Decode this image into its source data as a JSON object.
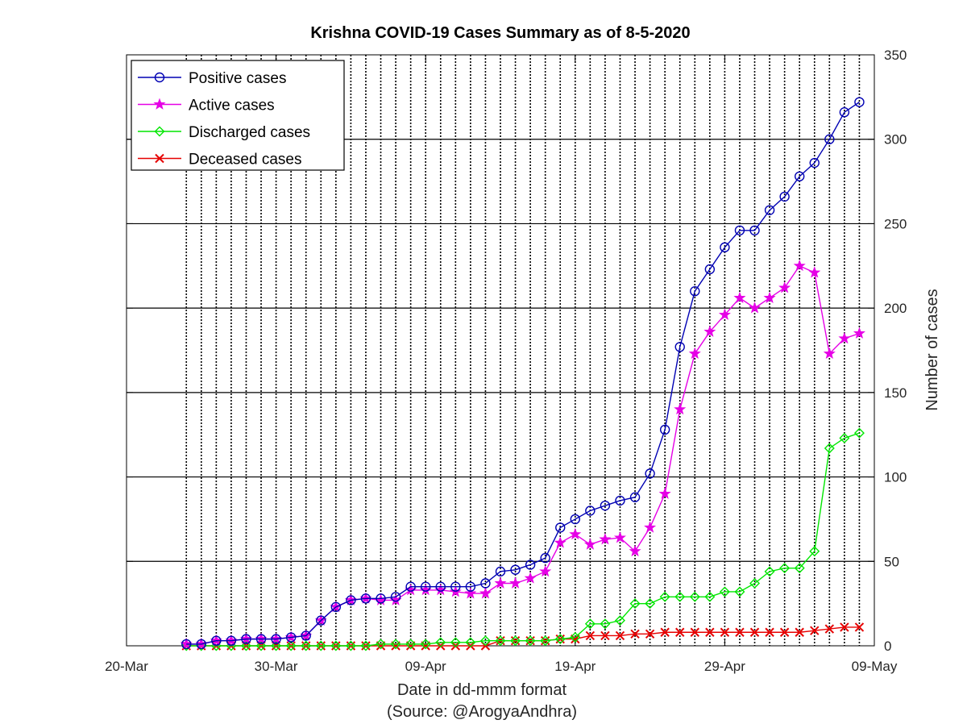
{
  "chart_data": {
    "type": "line",
    "title": "Krishna COVID-19 Cases Summary as of 8-5-2020",
    "xlabel": "Date in dd-mmm format",
    "xlabel_note": "(Source: @ArogyaAndhra)",
    "ylabel": "Number of cases",
    "x_tick_labels": [
      "20-Mar",
      "30-Mar",
      "09-Apr",
      "19-Apr",
      "29-Apr",
      "09-May"
    ],
    "xlim": [
      "2020-03-20",
      "2020-05-09"
    ],
    "y_ticks": [
      0,
      50,
      100,
      150,
      200,
      250,
      300,
      350
    ],
    "ylim": [
      0,
      350
    ],
    "y_axis_position": "right",
    "grid": true,
    "legend_position": "top-left",
    "x": [
      "2020-03-24",
      "2020-03-25",
      "2020-03-26",
      "2020-03-27",
      "2020-03-28",
      "2020-03-29",
      "2020-03-30",
      "2020-03-31",
      "2020-04-01",
      "2020-04-02",
      "2020-04-03",
      "2020-04-04",
      "2020-04-05",
      "2020-04-06",
      "2020-04-07",
      "2020-04-08",
      "2020-04-09",
      "2020-04-10",
      "2020-04-11",
      "2020-04-12",
      "2020-04-13",
      "2020-04-14",
      "2020-04-15",
      "2020-04-16",
      "2020-04-17",
      "2020-04-18",
      "2020-04-19",
      "2020-04-20",
      "2020-04-21",
      "2020-04-22",
      "2020-04-23",
      "2020-04-24",
      "2020-04-25",
      "2020-04-26",
      "2020-04-27",
      "2020-04-28",
      "2020-04-29",
      "2020-04-30",
      "2020-05-01",
      "2020-05-02",
      "2020-05-03",
      "2020-05-04",
      "2020-05-05",
      "2020-05-06",
      "2020-05-07",
      "2020-05-08"
    ],
    "series": [
      {
        "name": "Positive cases",
        "color": "#0000b3",
        "marker": "circle",
        "values": [
          1,
          1,
          3,
          3,
          4,
          4,
          4,
          5,
          6,
          15,
          23,
          27,
          28,
          28,
          29,
          35,
          35,
          35,
          35,
          35,
          37,
          44,
          45,
          48,
          52,
          70,
          75,
          80,
          83,
          86,
          88,
          102,
          128,
          177,
          210,
          223,
          236,
          246,
          246,
          258,
          266,
          278,
          286,
          300,
          316,
          322
        ]
      },
      {
        "name": "Active cases",
        "color": "#e600e6",
        "marker": "star",
        "values": [
          1,
          1,
          3,
          3,
          4,
          4,
          4,
          5,
          6,
          15,
          23,
          27,
          28,
          27,
          27,
          33,
          33,
          33,
          32,
          31,
          31,
          37,
          37,
          40,
          44,
          61,
          66,
          60,
          63,
          64,
          56,
          70,
          90,
          140,
          173,
          186,
          196,
          206,
          200,
          206,
          212,
          225,
          221,
          173,
          182,
          185
        ]
      },
      {
        "name": "Discharged cases",
        "color": "#00e600",
        "marker": "diamond",
        "values": [
          0,
          0,
          0,
          0,
          0,
          0,
          0,
          0,
          0,
          0,
          0,
          0,
          0,
          1,
          1,
          1,
          1,
          2,
          2,
          2,
          3,
          3,
          3,
          3,
          3,
          4,
          5,
          13,
          13,
          15,
          25,
          25,
          29,
          29,
          29,
          29,
          32,
          32,
          37,
          44,
          46,
          46,
          56,
          117,
          123,
          126
        ]
      },
      {
        "name": "Deceased cases",
        "color": "#e60000",
        "marker": "cross",
        "values": [
          0,
          0,
          0,
          0,
          0,
          0,
          0,
          0,
          0,
          0,
          0,
          0,
          0,
          0,
          0,
          0,
          0,
          0,
          0,
          0,
          0,
          3,
          3,
          3,
          3,
          4,
          4,
          6,
          6,
          6,
          7,
          7,
          8,
          8,
          8,
          8,
          8,
          8,
          8,
          8,
          8,
          8,
          9,
          10,
          11,
          11
        ]
      }
    ]
  }
}
